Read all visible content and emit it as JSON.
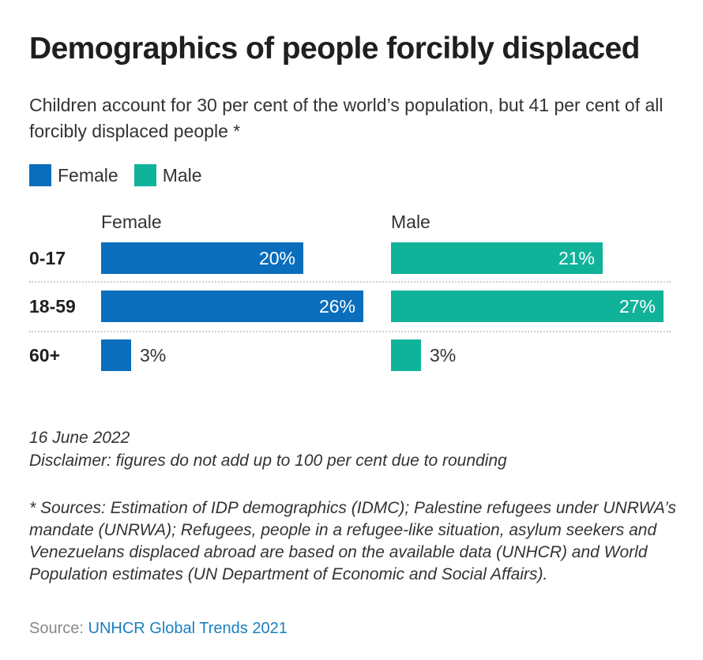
{
  "header": {
    "title": "Demographics of people forcibly displaced",
    "subtitle": "Children account for 30 per cent of the world’s population, but 41 per cent of all forcibly displaced people *"
  },
  "legend": {
    "items": [
      {
        "label": "Female",
        "color": "#0a6ebd"
      },
      {
        "label": "Male",
        "color": "#10b39a"
      }
    ]
  },
  "chart_data": {
    "type": "bar",
    "orientation": "horizontal",
    "layout": "small-multiples",
    "title": "Demographics of people forcibly displaced",
    "subtitle": "Children account for 30 per cent of the world’s population, but 41 per cent of all forcibly displaced people *",
    "categories": [
      "0-17",
      "18-59",
      "60+"
    ],
    "series": [
      {
        "name": "Female",
        "values": [
          20,
          26,
          3
        ],
        "color": "#0a6ebd"
      },
      {
        "name": "Male",
        "values": [
          21,
          27,
          3
        ],
        "color": "#10b39a"
      }
    ],
    "value_labels": {
      "Female": [
        "20%",
        "26%",
        "3%"
      ],
      "Male": [
        "21%",
        "27%",
        "3%"
      ]
    },
    "unit": "%",
    "xlim": [
      0,
      27
    ],
    "grid": false,
    "legend_position": "top-left"
  },
  "footer": {
    "date": "16 June 2022",
    "disclaimer": "Disclaimer: figures do not add up to 100 per cent due to rounding",
    "sources": "* Sources: Estimation of IDP demographics (IDMC); Palestine refugees under UNRWA’s mandate (UNRWA); Refugees, people in a refugee-like situation, asylum seekers and Venezuelans displaced abroad are based on the available data (UNHCR) and World Population estimates (UN Department of Economic and Social Affairs).",
    "source_label": "Source:",
    "source_link": "UNHCR Global Trends 2021"
  }
}
